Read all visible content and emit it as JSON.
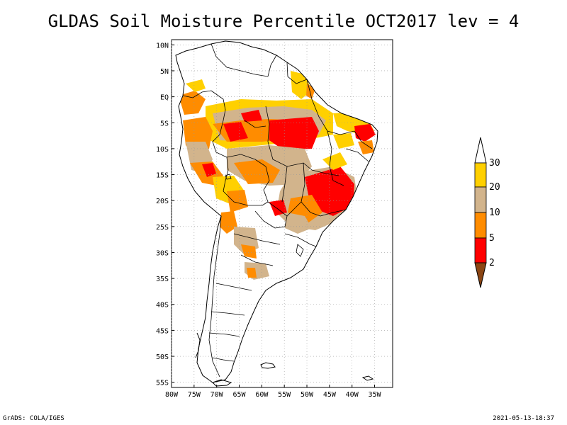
{
  "title": "GLDAS Soil Moisture Percentile OCT2017 lev = 4",
  "footer": {
    "left": "GrADS: COLA/IGES",
    "right": "2021-05-13-18:37"
  },
  "map": {
    "lon_range": [
      -80,
      -31
    ],
    "lat_range": [
      -56,
      11
    ],
    "lat_ticks": [
      "10N",
      "5N",
      "EQ",
      "5S",
      "10S",
      "15S",
      "20S",
      "25S",
      "30S",
      "35S",
      "40S",
      "45S",
      "50S",
      "55S"
    ],
    "lat_values": [
      10,
      5,
      0,
      -5,
      -10,
      -15,
      -20,
      -25,
      -30,
      -35,
      -40,
      -45,
      -50,
      -55
    ],
    "lon_ticks": [
      "80W",
      "75W",
      "70W",
      "65W",
      "60W",
      "55W",
      "50W",
      "45W",
      "40W",
      "35W"
    ],
    "lon_values": [
      -80,
      -75,
      -70,
      -65,
      -60,
      -55,
      -50,
      -45,
      -40,
      -35
    ]
  },
  "colorbar": {
    "labels": [
      "30",
      "20",
      "10",
      "5",
      "2"
    ],
    "colors": {
      "above_30": "#ffffff",
      "20_30": "#ffd000",
      "10_20": "#d2b48c",
      "5_10": "#ff8c00",
      "2_5": "#ff0000",
      "below_2": "#8b4513"
    }
  },
  "colors": {
    "red": "#ff0000",
    "orange": "#ff8c00",
    "tan": "#d2b48c",
    "yellow": "#ffd000"
  }
}
